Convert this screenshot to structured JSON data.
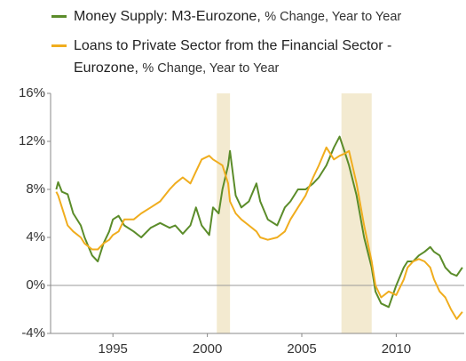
{
  "chart_data": {
    "type": "line",
    "x": [
      1992.0,
      1992.1,
      1992.3,
      1992.6,
      1992.9,
      1993.3,
      1993.5,
      1993.9,
      1994.2,
      1994.5,
      1994.8,
      1995.0,
      1995.3,
      1995.6,
      1996.1,
      1996.5,
      1997.0,
      1997.5,
      1998.0,
      1998.3,
      1998.7,
      1999.1,
      1999.4,
      1999.7,
      2000.1,
      2000.3,
      2000.6,
      2000.8,
      2001.1,
      2001.2,
      2001.5,
      2001.8,
      2002.2,
      2002.6,
      2002.8,
      2003.2,
      2003.7,
      2004.1,
      2004.4,
      2004.8,
      2005.2,
      2005.6,
      2005.9,
      2006.3,
      2006.7,
      2007.0,
      2007.3,
      2007.5,
      2007.9,
      2008.3,
      2008.7,
      2008.9,
      2009.2,
      2009.6,
      2010.0,
      2010.4,
      2010.6,
      2010.9,
      2011.2,
      2011.5,
      2011.8,
      2012.0,
      2012.3,
      2012.6,
      2012.9,
      2013.2,
      2013.5
    ],
    "series": [
      {
        "name": "Money Supply: M3-Eurozone,",
        "suffix": "% Change, Year to Year",
        "color": "#5b8c2a",
        "values": [
          8.0,
          8.6,
          7.8,
          7.6,
          6.0,
          5.0,
          4.0,
          2.5,
          2.0,
          3.5,
          4.5,
          5.5,
          5.8,
          5.0,
          4.5,
          4.0,
          4.8,
          5.2,
          4.8,
          5.0,
          4.3,
          5.0,
          6.5,
          5.0,
          4.2,
          6.5,
          6.0,
          8.0,
          10.0,
          11.2,
          7.5,
          6.5,
          7.0,
          8.5,
          7.0,
          5.5,
          5.0,
          6.5,
          7.0,
          8.0,
          8.0,
          8.5,
          9.0,
          10.0,
          11.5,
          12.4,
          11.0,
          10.0,
          7.5,
          4.0,
          1.5,
          -0.5,
          -1.5,
          -1.8,
          0.0,
          1.5,
          2.0,
          2.0,
          2.5,
          2.8,
          3.2,
          2.8,
          2.5,
          1.5,
          1.0,
          0.8,
          1.5
        ]
      },
      {
        "name": "Loans to Private Sector from the Financial Sector - Eurozone,",
        "suffix": "% Change, Year to Year",
        "color": "#f0ad1e",
        "values": [
          7.8,
          7.5,
          6.5,
          5.0,
          4.5,
          4.0,
          3.5,
          3.0,
          3.0,
          3.5,
          3.8,
          4.2,
          4.5,
          5.5,
          5.5,
          6.0,
          6.5,
          7.0,
          8.0,
          8.5,
          9.0,
          8.5,
          9.5,
          10.5,
          10.8,
          10.5,
          10.2,
          10.0,
          8.5,
          7.0,
          6.0,
          5.5,
          5.0,
          4.5,
          4.0,
          3.8,
          4.0,
          4.5,
          5.5,
          6.5,
          7.5,
          9.0,
          10.0,
          11.5,
          10.5,
          10.8,
          11.0,
          11.2,
          8.5,
          5.0,
          2.0,
          0.0,
          -1.0,
          -0.5,
          -0.8,
          0.5,
          1.5,
          2.0,
          2.2,
          2.0,
          1.5,
          0.5,
          -0.5,
          -1.0,
          -2.0,
          -2.8,
          -2.2
        ]
      }
    ],
    "xlim": [
      1991.7,
      2013.6
    ],
    "xticks": [
      1995,
      2000,
      2005,
      2010
    ],
    "ylim": [
      -4,
      16
    ],
    "yticks": [
      {
        "value": -4,
        "label": "-4%"
      },
      {
        "value": 0,
        "label": "0%"
      },
      {
        "value": 4,
        "label": "4%"
      },
      {
        "value": 8,
        "label": "8%"
      },
      {
        "value": 12,
        "label": "12%"
      },
      {
        "value": 16,
        "label": "16%"
      }
    ],
    "shaded_regions": [
      [
        2000.5,
        2001.2
      ],
      [
        2007.1,
        2008.7
      ]
    ],
    "shade_color": "#f3ead0",
    "zero_line": true
  }
}
